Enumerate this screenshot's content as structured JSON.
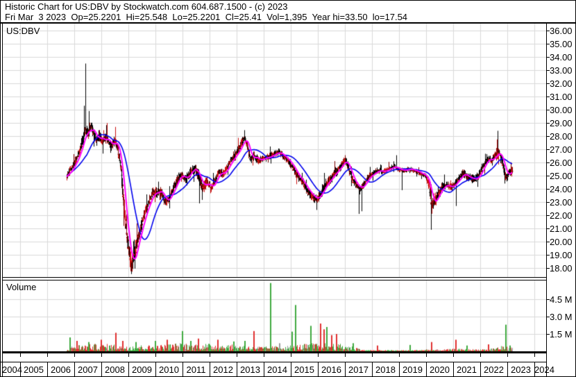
{
  "header": {
    "line1": "Historic Chart for US:DBV by Stockwatch.com 604.687.1500 - (c) 2023",
    "line2": "Fri Mar  3 2023  Op=25.2201  Hi=25.548  Lo=25.2201  Cl=25.41  Vol=1,395  Year hi=33.50  lo=17.54"
  },
  "price_pane": {
    "label": "US:DBV"
  },
  "volume_pane": {
    "label": "Volume"
  },
  "axes": {
    "price_ticks": [
      "36.00",
      "35.00",
      "34.00",
      "33.00",
      "32.00",
      "31.00",
      "30.00",
      "29.00",
      "28.00",
      "27.00",
      "26.00",
      "25.00",
      "24.00",
      "23.00",
      "22.00",
      "21.00",
      "20.00",
      "19.00",
      "18.00"
    ],
    "volume_ticks": [
      "4.5 M",
      "3.0 M",
      "1.5 M"
    ],
    "years": [
      "2004",
      "2005",
      "2006",
      "2007",
      "2008",
      "2009",
      "2010",
      "2011",
      "2012",
      "2013",
      "2014",
      "2015",
      "2016",
      "2017",
      "2018",
      "2019",
      "2020",
      "2021",
      "2022",
      "2023",
      "2024"
    ]
  },
  "colors": {
    "bg": "#ffffff",
    "frame": "#000000",
    "text": "#000000",
    "grid": "#d9d9d9",
    "candle_black": "#000000",
    "candle_red": "#cc1111",
    "candle_dark_red": "#7d0000",
    "ma_fast": "#ff00ff",
    "ma_slow": "#0000ee",
    "vol_green": "#3faa3f",
    "vol_red": "#e03030",
    "vol_gray": "#9a9a9a"
  },
  "chart_data": {
    "type": "candlestick",
    "symbol": "US:DBV",
    "title": "Historic Chart for US:DBV",
    "x_unit": "year",
    "x_range": [
      2006.72,
      2023.17
    ],
    "price_axis": {
      "min": 18,
      "max": 36,
      "step": 1
    },
    "volume_axis": {
      "unit": "M",
      "ticks": [
        4.5,
        3.0,
        1.5
      ]
    },
    "last_quote": {
      "date": "Fri Mar 3 2023",
      "open": 25.2201,
      "high": 25.548,
      "low": 25.2201,
      "close": 25.41,
      "volume": 1395,
      "chart_high": 33.5,
      "chart_low": 17.54
    },
    "price_anchors": [
      [
        2006.72,
        24.9
      ],
      [
        2006.85,
        25.4
      ],
      [
        2007.0,
        25.9
      ],
      [
        2007.15,
        26.6
      ],
      [
        2007.3,
        27.6
      ],
      [
        2007.42,
        28.5
      ],
      [
        2007.5,
        28.2
      ],
      [
        2007.62,
        28.7
      ],
      [
        2007.72,
        28.3
      ],
      [
        2007.82,
        27.6
      ],
      [
        2007.92,
        28.1
      ],
      [
        2008.05,
        27.6
      ],
      [
        2008.2,
        27.9
      ],
      [
        2008.35,
        27.2
      ],
      [
        2008.5,
        27.7
      ],
      [
        2008.62,
        26.9
      ],
      [
        2008.72,
        25.6
      ],
      [
        2008.82,
        23.0
      ],
      [
        2008.92,
        20.8
      ],
      [
        2009.02,
        19.2
      ],
      [
        2009.12,
        18.2
      ],
      [
        2009.2,
        18.8
      ],
      [
        2009.3,
        19.8
      ],
      [
        2009.45,
        21.0
      ],
      [
        2009.6,
        22.2
      ],
      [
        2009.75,
        23.0
      ],
      [
        2009.9,
        23.7
      ],
      [
        2010.05,
        23.7
      ],
      [
        2010.2,
        23.9
      ],
      [
        2010.35,
        23.0
      ],
      [
        2010.5,
        23.3
      ],
      [
        2010.65,
        24.0
      ],
      [
        2010.8,
        24.7
      ],
      [
        2010.95,
        25.1
      ],
      [
        2011.1,
        24.7
      ],
      [
        2011.25,
        25.2
      ],
      [
        2011.45,
        25.6
      ],
      [
        2011.6,
        24.9
      ],
      [
        2011.75,
        24.1
      ],
      [
        2011.9,
        24.5
      ],
      [
        2012.05,
        24.0
      ],
      [
        2012.2,
        24.7
      ],
      [
        2012.35,
        25.3
      ],
      [
        2012.5,
        25.1
      ],
      [
        2012.65,
        25.7
      ],
      [
        2012.8,
        26.2
      ],
      [
        2012.95,
        26.6
      ],
      [
        2013.1,
        27.1
      ],
      [
        2013.28,
        27.9
      ],
      [
        2013.4,
        27.2
      ],
      [
        2013.5,
        26.2
      ],
      [
        2013.65,
        26.5
      ],
      [
        2013.8,
        26.1
      ],
      [
        2013.95,
        26.3
      ],
      [
        2014.15,
        26.4
      ],
      [
        2014.35,
        26.6
      ],
      [
        2014.55,
        26.8
      ],
      [
        2014.7,
        26.5
      ],
      [
        2014.9,
        26.1
      ],
      [
        2015.05,
        25.7
      ],
      [
        2015.2,
        25.1
      ],
      [
        2015.4,
        24.6
      ],
      [
        2015.6,
        23.9
      ],
      [
        2015.8,
        23.4
      ],
      [
        2015.95,
        23.2
      ],
      [
        2016.1,
        23.7
      ],
      [
        2016.3,
        24.4
      ],
      [
        2016.5,
        24.9
      ],
      [
        2016.7,
        25.4
      ],
      [
        2016.88,
        25.9
      ],
      [
        2017.0,
        26.2
      ],
      [
        2017.12,
        25.6
      ],
      [
        2017.25,
        24.8
      ],
      [
        2017.4,
        24.3
      ],
      [
        2017.55,
        24.0
      ],
      [
        2017.7,
        24.4
      ],
      [
        2017.85,
        24.9
      ],
      [
        2018.0,
        25.1
      ],
      [
        2018.2,
        25.4
      ],
      [
        2018.4,
        25.3
      ],
      [
        2018.6,
        25.5
      ],
      [
        2018.8,
        25.7
      ],
      [
        2018.95,
        25.5
      ],
      [
        2019.15,
        25.4
      ],
      [
        2019.35,
        25.5
      ],
      [
        2019.55,
        25.4
      ],
      [
        2019.75,
        25.2
      ],
      [
        2019.95,
        25.0
      ],
      [
        2020.1,
        24.3
      ],
      [
        2020.18,
        22.8
      ],
      [
        2020.3,
        23.1
      ],
      [
        2020.45,
        23.7
      ],
      [
        2020.6,
        24.2
      ],
      [
        2020.75,
        24.3
      ],
      [
        2020.9,
        24.1
      ],
      [
        2021.05,
        24.4
      ],
      [
        2021.2,
        24.8
      ],
      [
        2021.35,
        25.2
      ],
      [
        2021.5,
        24.9
      ],
      [
        2021.65,
        24.8
      ],
      [
        2021.8,
        24.7
      ],
      [
        2021.95,
        25.1
      ],
      [
        2022.1,
        25.8
      ],
      [
        2022.25,
        26.3
      ],
      [
        2022.4,
        26.1
      ],
      [
        2022.55,
        26.6
      ],
      [
        2022.67,
        26.8
      ],
      [
        2022.78,
        26.2
      ],
      [
        2022.88,
        25.2
      ],
      [
        2022.96,
        24.9
      ],
      [
        2023.05,
        25.3
      ],
      [
        2023.17,
        25.41
      ]
    ],
    "volatility_anchors": [
      [
        2006.72,
        0.3
      ],
      [
        2007.4,
        0.55
      ],
      [
        2007.9,
        0.5
      ],
      [
        2008.6,
        0.55
      ],
      [
        2008.85,
        1.0
      ],
      [
        2009.15,
        0.8
      ],
      [
        2009.6,
        0.5
      ],
      [
        2010.3,
        0.45
      ],
      [
        2011.0,
        0.4
      ],
      [
        2011.6,
        0.55
      ],
      [
        2012.3,
        0.4
      ],
      [
        2013.3,
        0.5
      ],
      [
        2013.9,
        0.35
      ],
      [
        2014.6,
        0.3
      ],
      [
        2015.3,
        0.4
      ],
      [
        2016.2,
        0.5
      ],
      [
        2017.1,
        0.4
      ],
      [
        2018.0,
        0.3
      ],
      [
        2019.0,
        0.22
      ],
      [
        2019.9,
        0.2
      ],
      [
        2020.2,
        0.8
      ],
      [
        2020.7,
        0.35
      ],
      [
        2021.4,
        0.35
      ],
      [
        2022.0,
        0.4
      ],
      [
        2022.7,
        0.55
      ],
      [
        2023.17,
        0.35
      ]
    ],
    "extreme_wicks": [
      [
        2007.38,
        "hi",
        30.3
      ],
      [
        2007.42,
        "hi",
        33.5
      ],
      [
        2007.55,
        "hi",
        29.9
      ],
      [
        2009.1,
        "lo",
        17.54
      ],
      [
        2011.62,
        "lo",
        22.9
      ],
      [
        2013.28,
        "hi",
        28.45
      ],
      [
        2015.95,
        "lo",
        22.4
      ],
      [
        2017.5,
        "lo",
        22.1
      ],
      [
        2017.62,
        "lo",
        22.3
      ],
      [
        2018.9,
        "hi",
        26.55
      ],
      [
        2019.1,
        "lo",
        23.9
      ],
      [
        2020.17,
        "lo",
        20.9
      ],
      [
        2021.1,
        "lo",
        22.7
      ],
      [
        2022.63,
        "hi",
        28.4
      ],
      [
        2022.9,
        "lo",
        24.4
      ]
    ],
    "moving_averages": [
      {
        "name": "fast",
        "window_weeks": 9,
        "color_key": "ma_fast"
      },
      {
        "name": "slow",
        "window_weeks": 30,
        "color_key": "ma_slow"
      }
    ],
    "volume_base_anchors": [
      [
        2006.72,
        0.1
      ],
      [
        2007.0,
        0.3
      ],
      [
        2008.0,
        0.35
      ],
      [
        2009.0,
        0.3
      ],
      [
        2010.0,
        0.28
      ],
      [
        2011.0,
        0.4
      ],
      [
        2012.0,
        0.35
      ],
      [
        2013.0,
        0.3
      ],
      [
        2014.0,
        0.22
      ],
      [
        2015.0,
        0.28
      ],
      [
        2016.0,
        0.4
      ],
      [
        2016.8,
        0.35
      ],
      [
        2017.4,
        0.2
      ],
      [
        2017.7,
        0.07
      ],
      [
        2018.5,
        0.06
      ],
      [
        2019.5,
        0.06
      ],
      [
        2020.0,
        0.1
      ],
      [
        2020.5,
        0.08
      ],
      [
        2021.0,
        0.12
      ],
      [
        2021.8,
        0.1
      ],
      [
        2022.3,
        0.13
      ],
      [
        2022.8,
        0.25
      ],
      [
        2023.17,
        0.18
      ]
    ],
    "volume_spikes": [
      [
        2006.85,
        1.2,
        "green"
      ],
      [
        2007.1,
        0.9,
        "red"
      ],
      [
        2007.55,
        0.8,
        "green"
      ],
      [
        2008.0,
        1.0,
        "red"
      ],
      [
        2008.55,
        1.6,
        "red"
      ],
      [
        2008.8,
        0.9,
        "red"
      ],
      [
        2009.3,
        0.8,
        "green"
      ],
      [
        2010.0,
        0.9,
        "green"
      ],
      [
        2010.45,
        1.0,
        "red"
      ],
      [
        2011.0,
        1.75,
        "green"
      ],
      [
        2011.3,
        0.9,
        "green"
      ],
      [
        2011.6,
        1.1,
        "red"
      ],
      [
        2012.3,
        1.0,
        "red"
      ],
      [
        2012.9,
        0.85,
        "green"
      ],
      [
        2013.3,
        0.9,
        "green"
      ],
      [
        2013.65,
        1.75,
        "red"
      ],
      [
        2014.25,
        5.9,
        "green"
      ],
      [
        2014.6,
        0.7,
        "gray"
      ],
      [
        2015.05,
        1.7,
        "green"
      ],
      [
        2015.18,
        4.0,
        "green"
      ],
      [
        2015.74,
        2.2,
        "green"
      ],
      [
        2016.1,
        2.4,
        "red"
      ],
      [
        2016.22,
        1.9,
        "red"
      ],
      [
        2016.32,
        2.1,
        "green"
      ],
      [
        2016.5,
        1.4,
        "red"
      ],
      [
        2016.7,
        1.5,
        "red"
      ],
      [
        2017.3,
        0.7,
        "green"
      ],
      [
        2018.2,
        0.5,
        "red"
      ],
      [
        2019.4,
        0.55,
        "green"
      ],
      [
        2020.2,
        0.8,
        "red"
      ],
      [
        2021.1,
        1.0,
        "red"
      ],
      [
        2021.5,
        0.5,
        "green"
      ],
      [
        2022.3,
        0.6,
        "red"
      ],
      [
        2022.93,
        2.3,
        "green"
      ],
      [
        2023.1,
        0.5,
        "green"
      ]
    ]
  }
}
